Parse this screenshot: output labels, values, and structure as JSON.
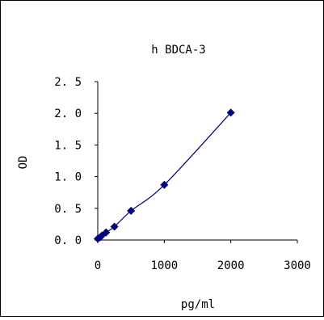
{
  "chart_data": {
    "type": "scatter",
    "title": "h BDCA-3",
    "xlabel": "pg/ml",
    "ylabel": "OD",
    "xlim": [
      0,
      3000
    ],
    "ylim": [
      0,
      2.5
    ],
    "x_ticks": [
      "0",
      "1000",
      "2000",
      "3000"
    ],
    "y_ticks": [
      "0. 0",
      "0. 5",
      "1. 0",
      "1. 5",
      "2. 0",
      "2. 5"
    ],
    "grid": false,
    "legend": "none",
    "series": [
      {
        "x": [
          0,
          31.25,
          62.5,
          125,
          250,
          500,
          1000,
          2000
        ],
        "y": [
          0.02,
          0.04,
          0.07,
          0.12,
          0.21,
          0.46,
          0.87,
          2.01
        ],
        "marker": "diamond",
        "line": "smooth",
        "color": "#000080"
      }
    ]
  }
}
